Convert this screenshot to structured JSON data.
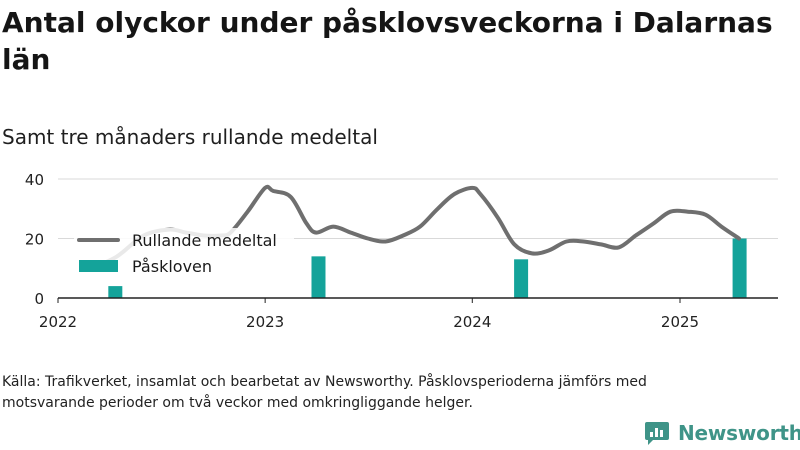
{
  "title": "Antal olyckor under påsklovsveckorna i Dalarnas län",
  "subtitle": "Samt tre månaders rullande medeltal",
  "source": "Källa: Trafikverket, insamlat och bearbetat av Newsworthy. Påsklovsperioderna jämförs med motsvarande perioder om två veckor med omkringliggande helger.",
  "brand": "Newsworthy",
  "colors": {
    "line": "#6f6f6f",
    "bars": "#14a39a",
    "brand": "#3f9488"
  },
  "chart_data": {
    "type": "bar+line",
    "x_ticks": [
      "2022",
      "2023",
      "2024",
      "2025"
    ],
    "y_ticks": [
      0,
      20,
      40
    ],
    "ylim": [
      0,
      40
    ],
    "grid": true,
    "legend_position": "left",
    "series": [
      {
        "name": "Rullande medeltal",
        "type": "line",
        "x": [
          "2022-03-01",
          "2022-04-15",
          "2022-06-01",
          "2022-07-15",
          "2022-08-15",
          "2022-09-15",
          "2022-10-15",
          "2022-11-01",
          "2022-12-01",
          "2023-01-01",
          "2023-01-15",
          "2023-02-15",
          "2023-03-15",
          "2023-04-01",
          "2023-05-01",
          "2023-06-01",
          "2023-07-01",
          "2023-08-01",
          "2023-09-01",
          "2023-10-01",
          "2023-11-01",
          "2023-12-01",
          "2024-01-01",
          "2024-01-15",
          "2024-02-15",
          "2024-03-15",
          "2024-04-15",
          "2024-05-15",
          "2024-06-15",
          "2024-07-15",
          "2024-08-15",
          "2024-09-15",
          "2024-10-15",
          "2024-11-15",
          "2024-12-15",
          "2025-01-15",
          "2025-02-15",
          "2025-03-15",
          "2025-04-15"
        ],
        "values": [
          10,
          14,
          21,
          23,
          22,
          21,
          21,
          22,
          29,
          37,
          36,
          34,
          25,
          22,
          24,
          22,
          20,
          19,
          21,
          24,
          30,
          35,
          37,
          35,
          27,
          18,
          15,
          16,
          19,
          19,
          18,
          17,
          21,
          25,
          29,
          29,
          28,
          24,
          20
        ]
      },
      {
        "name": "Påskloven",
        "type": "bar",
        "x": [
          "2022-04-12",
          "2023-04-05",
          "2024-03-27",
          "2025-04-16"
        ],
        "values": [
          4,
          14,
          13,
          20
        ]
      }
    ]
  }
}
